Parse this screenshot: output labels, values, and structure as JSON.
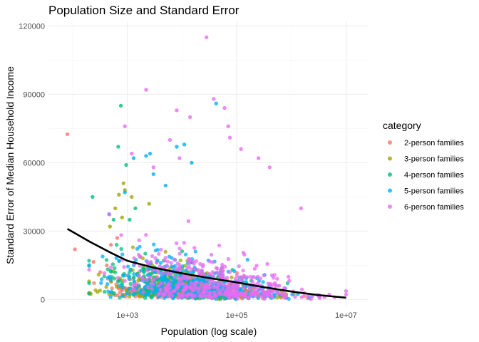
{
  "chart_data": {
    "type": "scatter",
    "title": "Population Size and Standard Error",
    "xlabel": "Population (log scale)",
    "ylabel": "Standard Error of Median Household Income",
    "x_scale": "log10",
    "xlim": [
      36,
      25000000
    ],
    "ylim": [
      -3000,
      122000
    ],
    "x_ticks": [
      1000,
      100000,
      10000000
    ],
    "x_tick_labels": [
      "1e+03",
      "1e+05",
      "1e+07"
    ],
    "y_ticks": [
      0,
      30000,
      60000,
      90000,
      120000
    ],
    "y_tick_labels": [
      "0",
      "30000",
      "60000",
      "90000",
      "120000"
    ],
    "grid": true,
    "legend": {
      "title": "category",
      "placement": "right"
    },
    "series": [
      {
        "name": "2-person families",
        "color": "#F8766D",
        "points": [
          [
            80,
            72500
          ],
          [
            110,
            22000
          ],
          [
            240,
            16500
          ],
          [
            320,
            12000
          ],
          [
            420,
            15000
          ],
          [
            500,
            24000
          ],
          [
            650,
            27000
          ],
          [
            800,
            4000
          ],
          [
            1500,
            3000
          ],
          [
            3000,
            5000
          ],
          [
            10000,
            4000
          ],
          [
            50000,
            3000
          ],
          [
            200000,
            2000
          ],
          [
            800000,
            1000
          ],
          [
            2000000,
            600
          ]
        ],
        "cloud": {
          "log_x_mean": 4.0,
          "log_x_sd": 0.75,
          "y_scale": 5000,
          "n": 260
        }
      },
      {
        "name": "3-person families",
        "color": "#A3A500",
        "points": [
          [
            850,
            51000
          ],
          [
            900,
            48000
          ],
          [
            700,
            46000
          ],
          [
            1200,
            45000
          ],
          [
            480,
            32000
          ],
          [
            600,
            40000
          ],
          [
            2500,
            42000
          ],
          [
            800,
            36000
          ]
        ],
        "cloud": {
          "log_x_mean": 3.95,
          "log_x_sd": 0.72,
          "y_scale": 7500,
          "n": 300
        }
      },
      {
        "name": "4-person families",
        "color": "#00BF7D",
        "points": [
          [
            230,
            45000
          ],
          [
            760,
            85000
          ],
          [
            680,
            67000
          ],
          [
            560,
            35000
          ],
          [
            1100,
            35000
          ],
          [
            950,
            59000
          ],
          [
            1400,
            40000
          ]
        ],
        "cloud": {
          "log_x_mean": 3.95,
          "log_x_sd": 0.7,
          "y_scale": 8000,
          "n": 300
        }
      },
      {
        "name": "5-person families",
        "color": "#00B0F6",
        "points": [
          [
            900,
            47000
          ],
          [
            1300,
            62000
          ],
          [
            2200,
            63000
          ],
          [
            2600,
            64000
          ],
          [
            8000,
            67000
          ],
          [
            11000,
            68000
          ],
          [
            15000,
            60000
          ],
          [
            42000,
            86000
          ],
          [
            5000,
            50000
          ],
          [
            3000,
            55000
          ]
        ],
        "cloud": {
          "log_x_mean": 4.15,
          "log_x_sd": 0.75,
          "y_scale": 9500,
          "n": 360
        }
      },
      {
        "name": "6-person families",
        "color": "#E76BF3",
        "points": [
          [
            2200,
            92000
          ],
          [
            28000,
            115000
          ],
          [
            8000,
            83000
          ],
          [
            38000,
            88000
          ],
          [
            60000,
            84000
          ],
          [
            14000,
            80000
          ],
          [
            70000,
            76000
          ],
          [
            75000,
            71000
          ],
          [
            6000,
            70000
          ],
          [
            120000,
            66000
          ],
          [
            250000,
            62000
          ],
          [
            900,
            76000
          ],
          [
            1200,
            64000
          ],
          [
            3000,
            58000
          ],
          [
            9000,
            62000
          ],
          [
            400000,
            58000
          ],
          [
            1500000,
            40000
          ]
        ],
        "cloud": {
          "log_x_mean": 4.6,
          "log_x_sd": 0.85,
          "y_scale": 12000,
          "n": 440
        }
      }
    ],
    "smooth": {
      "color": "#000000",
      "x": [
        80,
        200,
        500,
        1000,
        3000,
        10000,
        30000,
        100000,
        300000,
        1000000,
        3000000,
        10000000
      ],
      "y": [
        31000,
        25500,
        20500,
        17000,
        14000,
        11500,
        9500,
        7500,
        5500,
        3500,
        2000,
        800
      ]
    }
  }
}
